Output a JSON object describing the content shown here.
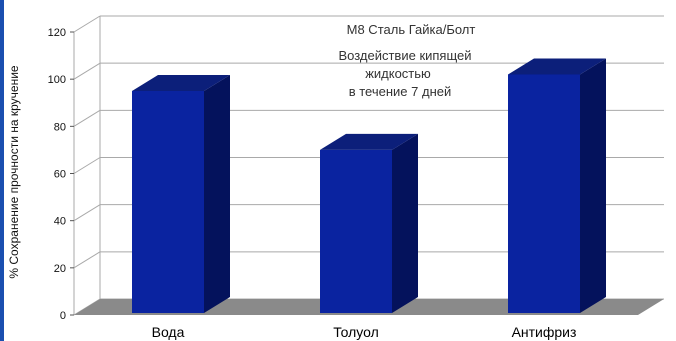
{
  "chart_data": {
    "type": "bar",
    "style": "3d",
    "title": "M8 Сталь Гайка/Болт",
    "subtitle_lines": [
      "Воздействие кипящей",
      "жидкостью",
      "в течение 7 дней"
    ],
    "xlabel": "",
    "ylabel": "% Сохранение прочности на кручение",
    "categories": [
      "Вода",
      "Толуол",
      "Антифриз"
    ],
    "values": [
      95,
      70,
      102
    ],
    "ylim": [
      0,
      120
    ],
    "yticks": [
      "0",
      "20",
      "40",
      "60",
      "80",
      "100",
      "120"
    ],
    "grid": true,
    "legend": "none",
    "colors": {
      "bar_front": "#0a23a0",
      "bar_side": "#04125c",
      "bar_top": "#0c1f7a",
      "floor": "#8a8a8a",
      "grid": "#a9a9a9",
      "accent": "#1a4fb0"
    }
  }
}
